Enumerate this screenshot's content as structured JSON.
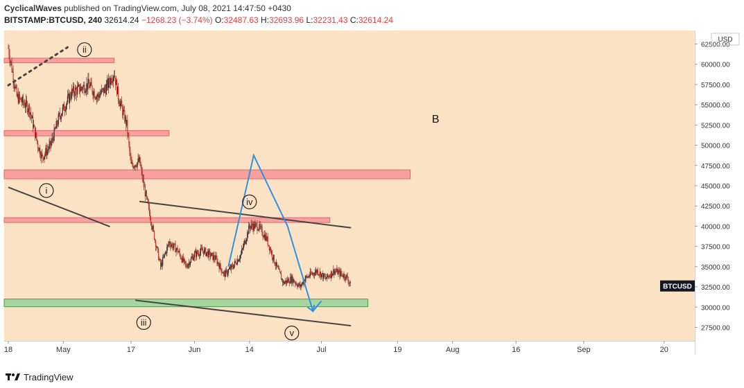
{
  "header": {
    "author": "CyclicalWaves",
    "published_text": "published on TradingView.com, July 08, 2021 14:47:50 +0430",
    "symbol": "BITSTAMP:BTCUSD, 240",
    "last_price": "32614.24",
    "change": "−1268.23 (−3.74%)",
    "o_label": "O:",
    "o_value": "32487.63",
    "h_label": "H:",
    "h_value": "32693.96",
    "l_label": "L:",
    "l_value": "32231.43",
    "c_label": "C:",
    "c_value": "32614.24"
  },
  "footer": {
    "brand": "TradingView"
  },
  "colors": {
    "background": "#fbe2c5",
    "candle": "#e0322c",
    "zone_red": "#f7a0a0",
    "zone_red_border": "#e06868",
    "zone_green": "#a6d6a0",
    "zone_green_border": "#4e9a4e",
    "trendline": "#444444",
    "projection": "#2e90e0",
    "price_tag": "#131722"
  },
  "chart_data": {
    "type": "candlestick",
    "y_currency": "USD",
    "ylim": [
      26000,
      64000
    ],
    "y_ticks": [
      27500,
      30000,
      32500,
      35000,
      37500,
      40000,
      42500,
      45000,
      47500,
      50000,
      52500,
      55000,
      57500,
      60000,
      62500
    ],
    "y_tick_labels": [
      "27500.00",
      "30000.00",
      "32500.00",
      "35000.00",
      "37500.00",
      "40000.00",
      "42500.00",
      "45000.00",
      "47500.00",
      "50000.00",
      "52500.00",
      "55000.00",
      "57500.00",
      "60000.00",
      "62500.00"
    ],
    "x_tick_labels": [
      "18",
      "May",
      "17",
      "Jun",
      "14",
      "Jul",
      "19",
      "Aug",
      "16",
      "Sep",
      "20"
    ],
    "x_ticks": [
      "2021-04-18",
      "2021-05-01",
      "2021-05-17",
      "2021-06-01",
      "2021-06-14",
      "2021-07-01",
      "2021-07-19",
      "2021-08-01",
      "2021-08-16",
      "2021-09-01",
      "2021-09-20"
    ],
    "xlim": [
      "2021-04-18",
      "2021-09-27"
    ],
    "last_value": 32614.24,
    "last_label": "BTCUSD",
    "close_path": [
      [
        "2021-04-18",
        62000
      ],
      [
        "2021-04-20",
        56000
      ],
      [
        "2021-04-23",
        54500
      ],
      [
        "2021-04-25",
        50000
      ],
      [
        "2021-04-26",
        48500
      ],
      [
        "2021-04-28",
        50000
      ],
      [
        "2021-04-30",
        53500
      ],
      [
        "2021-05-03",
        56500
      ],
      [
        "2021-05-05",
        57000
      ],
      [
        "2021-05-07",
        57500
      ],
      [
        "2021-05-09",
        56000
      ],
      [
        "2021-05-11",
        57000
      ],
      [
        "2021-05-13",
        59000
      ],
      [
        "2021-05-14",
        56000
      ],
      [
        "2021-05-16",
        52500
      ],
      [
        "2021-05-17",
        47500
      ],
      [
        "2021-05-19",
        48000
      ],
      [
        "2021-05-20",
        45000
      ],
      [
        "2021-05-21",
        42500
      ],
      [
        "2021-05-23",
        37500
      ],
      [
        "2021-05-24",
        35000
      ],
      [
        "2021-05-26",
        38000
      ],
      [
        "2021-05-28",
        37000
      ],
      [
        "2021-05-30",
        35000
      ],
      [
        "2021-06-01",
        36500
      ],
      [
        "2021-06-03",
        37000
      ],
      [
        "2021-06-06",
        36000
      ],
      [
        "2021-06-08",
        34000
      ],
      [
        "2021-06-10",
        35000
      ],
      [
        "2021-06-12",
        36500
      ],
      [
        "2021-06-14",
        40000
      ],
      [
        "2021-06-16",
        40000
      ],
      [
        "2021-06-18",
        38500
      ],
      [
        "2021-06-20",
        35500
      ],
      [
        "2021-06-22",
        33000
      ],
      [
        "2021-06-24",
        33500
      ],
      [
        "2021-06-26",
        32500
      ],
      [
        "2021-06-27",
        33500
      ],
      [
        "2021-06-30",
        34500
      ],
      [
        "2021-07-02",
        33500
      ],
      [
        "2021-07-04",
        34500
      ],
      [
        "2021-07-06",
        34000
      ],
      [
        "2021-07-07",
        33700
      ],
      [
        "2021-07-08",
        32614
      ]
    ],
    "zones": [
      {
        "color": "red",
        "x0": "2021-04-18",
        "x1": "2021-05-13",
        "y_low": 60200,
        "y_high": 60750
      },
      {
        "color": "red",
        "x0": "2021-04-18",
        "x1": "2021-05-26",
        "y_low": 51150,
        "y_high": 51800
      },
      {
        "color": "red",
        "x0": "2021-04-18",
        "x1": "2021-07-22",
        "y_low": 45850,
        "y_high": 46950
      },
      {
        "color": "red",
        "x0": "2021-04-18",
        "x1": "2021-07-03",
        "y_low": 40450,
        "y_high": 41050
      },
      {
        "color": "green",
        "x0": "2021-04-18",
        "x1": "2021-07-12",
        "y_low": 30050,
        "y_high": 31000
      }
    ],
    "trendlines": [
      {
        "style": "solid",
        "points": [
          [
            "2021-04-18",
            44800
          ],
          [
            "2021-05-12",
            39950
          ]
        ]
      },
      {
        "style": "solid",
        "points": [
          [
            "2021-05-19",
            43050
          ],
          [
            "2021-07-08",
            39800
          ]
        ]
      },
      {
        "style": "solid",
        "points": [
          [
            "2021-05-18",
            30850
          ],
          [
            "2021-07-08",
            27700
          ]
        ]
      },
      {
        "style": "dotted",
        "points": [
          [
            "2021-04-18",
            57400
          ],
          [
            "2021-05-02",
            62100
          ]
        ]
      }
    ],
    "projection": [
      [
        "2021-06-09",
        35000
      ],
      [
        "2021-06-15",
        48750
      ],
      [
        "2021-06-23",
        40000
      ],
      [
        "2021-06-29",
        29500
      ],
      [
        "2021-07-01",
        30750
      ]
    ],
    "wave_labels": [
      {
        "text": "ii",
        "x": "2021-05-06",
        "y": 61800
      },
      {
        "text": "i",
        "x": "2021-04-27",
        "y": 44400
      },
      {
        "text": "iii",
        "x": "2021-05-20",
        "y": 28100
      },
      {
        "text": "iv",
        "x": "2021-06-14",
        "y": 43000
      },
      {
        "text": "v",
        "x": "2021-06-24",
        "y": 26800
      }
    ],
    "annotations": [
      {
        "text": "B",
        "x": "2021-07-28",
        "y": 52800
      }
    ]
  }
}
